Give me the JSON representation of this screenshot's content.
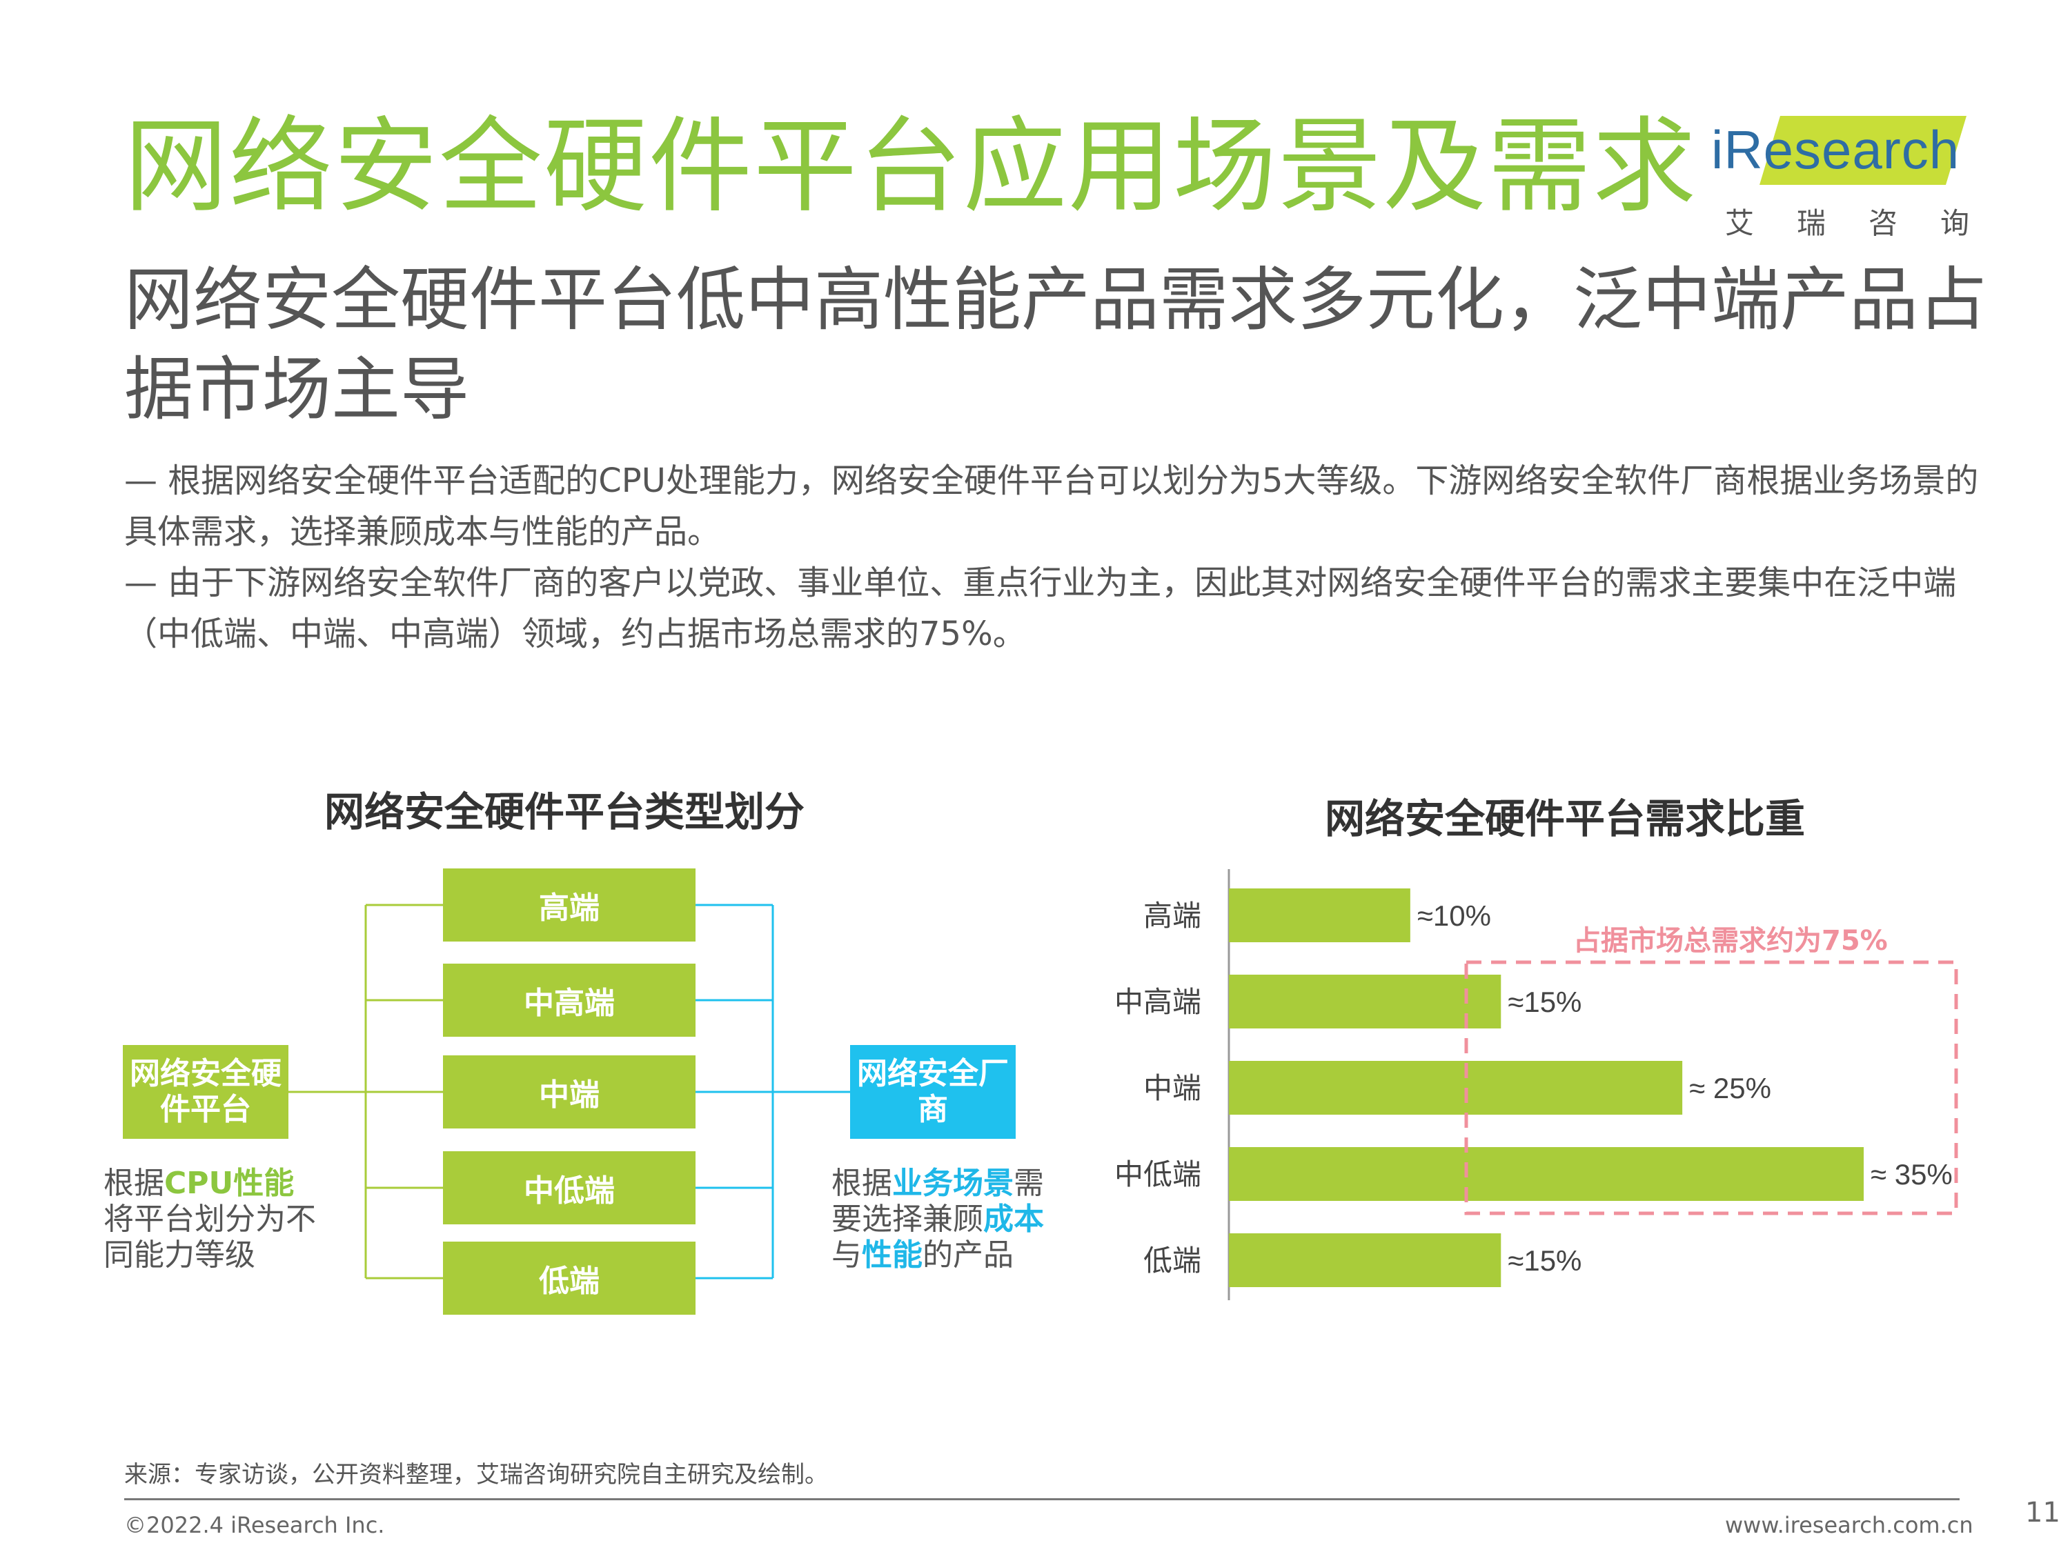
{
  "header": {
    "title": "网络安全硬件平台应用场景及需求",
    "subtitle": "网络安全硬件平台低中高性能产品需求多元化，泛中端产品占据市场主导"
  },
  "logo": {
    "brand": "iResearch",
    "cn": "艾瑞咨询"
  },
  "bullets": [
    "— 根据网络安全硬件平台适配的CPU处理能力，网络安全硬件平台可以划分为5大等级。下游网络安全软件厂商根据业务场景的具体需求，选择兼顾成本与性能的产品。",
    "— 由于下游网络安全软件厂商的客户以党政、事业单位、重点行业为主，因此其对网络安全硬件平台的需求主要集中在泛中端（中低端、中端、中高端）领域，约占据市场总需求的75%。"
  ],
  "diagram": {
    "title": "网络安全硬件平台类型划分",
    "left_box": "网络安全硬件平台",
    "right_box": "网络安全厂商",
    "tiers": [
      "高端",
      "中高端",
      "中端",
      "中低端",
      "低端"
    ],
    "left_note": {
      "pre": "根据",
      "hl": "CPU性能",
      "post": "将平台划分为不同能力等级"
    },
    "right_note": {
      "p1": "根据",
      "h1": "业务场景",
      "p2": "需要选择兼顾",
      "h2": "成本",
      "p3": "与",
      "h3": "性能",
      "p4": "的产品"
    },
    "colors": {
      "green": "#a9cc3a",
      "blue": "#1fc1ee"
    }
  },
  "chart_data": {
    "type": "bar",
    "orientation": "horizontal",
    "title": "网络安全硬件平台需求比重",
    "categories": [
      "高端",
      "中高端",
      "中端",
      "中低端",
      "低端"
    ],
    "values": [
      10,
      15,
      25,
      35,
      15
    ],
    "value_labels": [
      "≈10%",
      "≈15%",
      "≈ 25%",
      "≈ 35%",
      "≈15%"
    ],
    "xlim": [
      0,
      35
    ],
    "bar_color": "#a9cc3a",
    "annotation": {
      "text": "占据市场总需求约为75%",
      "color": "#f0909c",
      "covers": [
        "中高端",
        "中端",
        "中低端"
      ]
    }
  },
  "footer": {
    "source": "来源：专家访谈，公开资料整理，艾瑞咨询研究院自主研究及绘制。",
    "copyright": "©2022.4 iResearch Inc.",
    "url": "www.iresearch.com.cn",
    "page": "11"
  }
}
